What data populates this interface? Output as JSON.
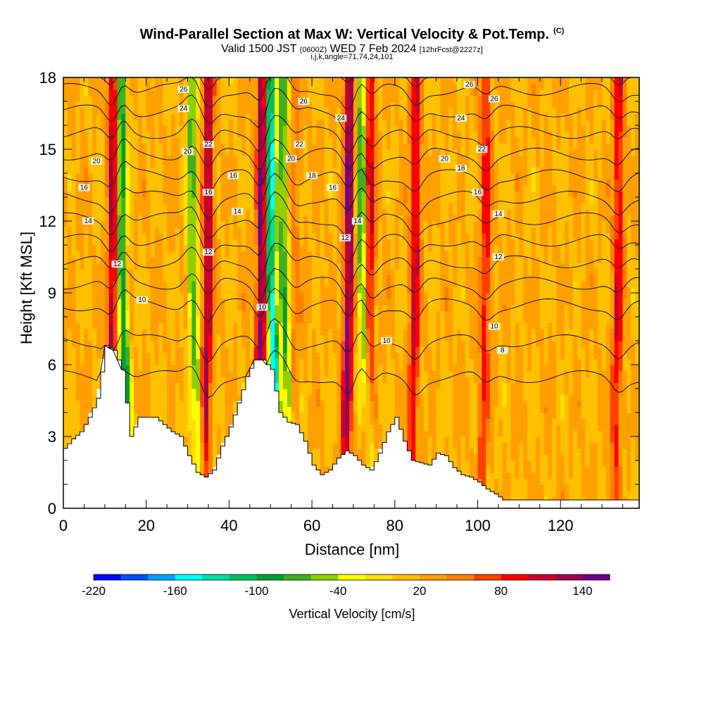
{
  "header": {
    "title": "Wind-Parallel Section at Max W: Vertical Velocity & Pot.Temp.",
    "title_units": "(C)",
    "valid_prefix": "Valid 1500 JST",
    "valid_zulu": "(0600Z)",
    "valid_date": "WED 7 Feb 2024",
    "forecast": "[12hrFcst@2227z]",
    "indices": "i,j,k,angle=71,74,24,101"
  },
  "chart_data": {
    "type": "heatmap",
    "xlabel": "Distance [nm]",
    "ylabel": "Height [Kft MSL]",
    "xlim": [
      0,
      139
    ],
    "ylim": [
      0,
      18
    ],
    "xticks": [
      0,
      20,
      40,
      60,
      80,
      100,
      120
    ],
    "yticks": [
      0,
      3,
      6,
      9,
      12,
      15,
      18
    ],
    "colorbar": {
      "label": "Vertical Velocity [cm/s]",
      "levels": [
        -220,
        -200,
        -180,
        -160,
        -140,
        -120,
        -100,
        -80,
        -60,
        -40,
        -20,
        0,
        20,
        40,
        60,
        80,
        100,
        120,
        140,
        160
      ],
      "tick_labels": [
        "-220",
        "-160",
        "-100",
        "-40",
        "20",
        "80",
        "140"
      ],
      "colors": [
        "#0000ff",
        "#0050ff",
        "#00a0ff",
        "#00ffff",
        "#00e0a0",
        "#00c060",
        "#00a030",
        "#40b020",
        "#90d000",
        "#ffff00",
        "#ffe000",
        "#ffc000",
        "#ffa000",
        "#ff8000",
        "#ff4000",
        "#ff0000",
        "#c8002c",
        "#a00050",
        "#70008a"
      ]
    },
    "updrafts_and_downdrafts": [
      {
        "x": 12,
        "w": 120
      },
      {
        "x": 14,
        "w": -110
      },
      {
        "x": 31,
        "w": -80
      },
      {
        "x": 35,
        "w": 120
      },
      {
        "x": 48,
        "w": 150
      },
      {
        "x": 50,
        "w": -170
      },
      {
        "x": 53,
        "w": -90
      },
      {
        "x": 56,
        "w": 40
      },
      {
        "x": 69,
        "w": 140
      },
      {
        "x": 72,
        "w": -90
      },
      {
        "x": 74,
        "w": 100
      },
      {
        "x": 85,
        "w": 100
      },
      {
        "x": 102,
        "w": 80
      },
      {
        "x": 134,
        "w": 90
      }
    ],
    "terrain": [
      {
        "x": 0,
        "h": 2.5
      },
      {
        "x": 2,
        "h": 2.9
      },
      {
        "x": 4,
        "h": 3.2
      },
      {
        "x": 6,
        "h": 3.8
      },
      {
        "x": 8,
        "h": 4.6
      },
      {
        "x": 10,
        "h": 6.8
      },
      {
        "x": 12,
        "h": 6.6
      },
      {
        "x": 14,
        "h": 5.8
      },
      {
        "x": 16,
        "h": 3.0
      },
      {
        "x": 18,
        "h": 3.8
      },
      {
        "x": 22,
        "h": 3.8
      },
      {
        "x": 26,
        "h": 3.2
      },
      {
        "x": 28,
        "h": 3.0
      },
      {
        "x": 30,
        "h": 2.2
      },
      {
        "x": 32,
        "h": 1.5
      },
      {
        "x": 34,
        "h": 1.3
      },
      {
        "x": 36,
        "h": 1.6
      },
      {
        "x": 38,
        "h": 2.6
      },
      {
        "x": 40,
        "h": 3.4
      },
      {
        "x": 42,
        "h": 4.4
      },
      {
        "x": 44,
        "h": 5.5
      },
      {
        "x": 46,
        "h": 6.2
      },
      {
        "x": 48,
        "h": 6.2
      },
      {
        "x": 50,
        "h": 5.8
      },
      {
        "x": 52,
        "h": 4.0
      },
      {
        "x": 54,
        "h": 3.6
      },
      {
        "x": 56,
        "h": 3.5
      },
      {
        "x": 58,
        "h": 2.8
      },
      {
        "x": 60,
        "h": 1.8
      },
      {
        "x": 62,
        "h": 1.4
      },
      {
        "x": 64,
        "h": 1.6
      },
      {
        "x": 66,
        "h": 2.1
      },
      {
        "x": 68,
        "h": 2.4
      },
      {
        "x": 70,
        "h": 2.2
      },
      {
        "x": 72,
        "h": 1.8
      },
      {
        "x": 74,
        "h": 1.6
      },
      {
        "x": 76,
        "h": 2.3
      },
      {
        "x": 78,
        "h": 3.2
      },
      {
        "x": 80,
        "h": 3.8
      },
      {
        "x": 82,
        "h": 2.8
      },
      {
        "x": 84,
        "h": 2.0
      },
      {
        "x": 86,
        "h": 1.9
      },
      {
        "x": 88,
        "h": 1.8
      },
      {
        "x": 90,
        "h": 2.3
      },
      {
        "x": 92,
        "h": 2.2
      },
      {
        "x": 94,
        "h": 1.7
      },
      {
        "x": 96,
        "h": 1.4
      },
      {
        "x": 98,
        "h": 1.3
      },
      {
        "x": 100,
        "h": 1.1
      },
      {
        "x": 102,
        "h": 0.8
      },
      {
        "x": 104,
        "h": 0.6
      },
      {
        "x": 106,
        "h": 0.35
      },
      {
        "x": 139,
        "h": 0.35
      }
    ],
    "theta_contours": {
      "label": "Potential Temperature (C)",
      "levels": [
        8,
        10,
        12,
        14,
        16,
        18,
        20,
        22,
        24,
        26
      ]
    }
  }
}
